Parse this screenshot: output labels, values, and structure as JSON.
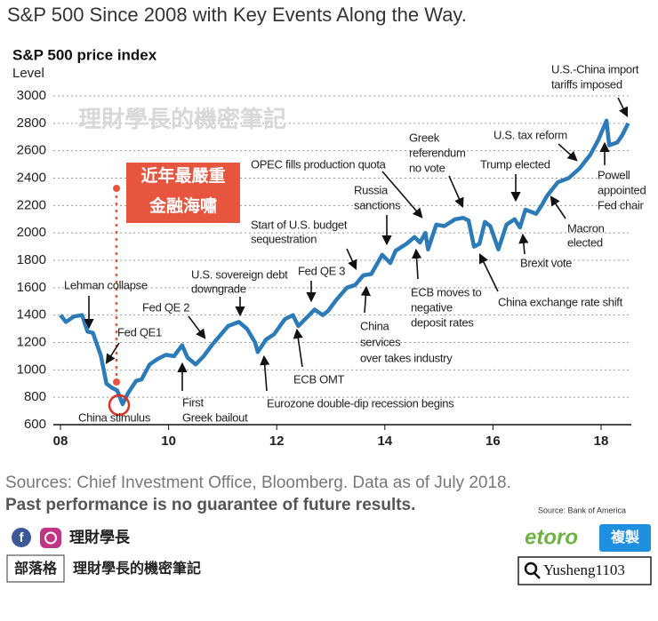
{
  "chart_data": {
    "type": "line",
    "title": "S&P 500 Since 2008 with Key Events Along the Way.",
    "subtitle": "S&P 500 price index",
    "y_axis_label": "Level",
    "watermark": "理財學長的機密筆記",
    "color": "#2b7bb9",
    "ylim": [
      600,
      3000
    ],
    "yticks": [
      600,
      800,
      1000,
      1200,
      1400,
      1600,
      1800,
      2000,
      2200,
      2400,
      2600,
      2800,
      3000
    ],
    "xlim": [
      2008,
      2018.55
    ],
    "xticks": [
      {
        "value": 2008,
        "label": "08"
      },
      {
        "value": 2010,
        "label": "10"
      },
      {
        "value": 2012,
        "label": "12"
      },
      {
        "value": 2014,
        "label": "14"
      },
      {
        "value": 2016,
        "label": "16"
      },
      {
        "value": 2018,
        "label": "18"
      }
    ],
    "grid": true,
    "x": [
      2008.0,
      2008.1,
      2008.25,
      2008.4,
      2008.5,
      2008.6,
      2008.75,
      2008.85,
      2008.95,
      2009.05,
      2009.15,
      2009.25,
      2009.4,
      2009.5,
      2009.65,
      2009.8,
      2009.95,
      2010.1,
      2010.25,
      2010.35,
      2010.5,
      2010.65,
      2010.8,
      2010.95,
      2011.1,
      2011.3,
      2011.45,
      2011.6,
      2011.65,
      2011.8,
      2011.95,
      2012.15,
      2012.3,
      2012.4,
      2012.55,
      2012.7,
      2012.85,
      2012.95,
      2013.1,
      2013.3,
      2013.45,
      2013.6,
      2013.75,
      2013.95,
      2014.1,
      2014.2,
      2014.4,
      2014.55,
      2014.65,
      2014.75,
      2014.8,
      2014.95,
      2015.1,
      2015.3,
      2015.45,
      2015.55,
      2015.65,
      2015.75,
      2015.85,
      2015.95,
      2016.1,
      2016.25,
      2016.4,
      2016.5,
      2016.6,
      2016.8,
      2016.9,
      2017.0,
      2017.2,
      2017.4,
      2017.6,
      2017.8,
      2017.95,
      2018.1,
      2018.15,
      2018.3,
      2018.4,
      2018.5
    ],
    "values": [
      1400,
      1350,
      1390,
      1400,
      1280,
      1270,
      1100,
      900,
      870,
      850,
      750,
      830,
      920,
      930,
      1040,
      1080,
      1110,
      1100,
      1180,
      1090,
      1040,
      1100,
      1180,
      1250,
      1320,
      1350,
      1300,
      1200,
      1130,
      1220,
      1260,
      1370,
      1400,
      1320,
      1380,
      1440,
      1400,
      1430,
      1510,
      1600,
      1620,
      1690,
      1700,
      1840,
      1780,
      1870,
      1920,
      1970,
      1930,
      2000,
      1880,
      2060,
      2050,
      2100,
      2110,
      2090,
      1900,
      1920,
      2080,
      2050,
      1880,
      2060,
      2100,
      2040,
      2170,
      2140,
      2200,
      2270,
      2370,
      2400,
      2470,
      2570,
      2680,
      2820,
      2640,
      2660,
      2720,
      2800
    ],
    "annotations": [
      {
        "lines": [
          "Lehman collapse"
        ]
      },
      {
        "lines": [
          "Fed QE1"
        ]
      },
      {
        "lines": [
          "China stimulus"
        ]
      },
      {
        "lines": [
          "Fed QE 2"
        ]
      },
      {
        "lines": [
          "First",
          "Greek bailout"
        ]
      },
      {
        "lines": [
          "U.S. sovereign debt",
          "downgrade"
        ]
      },
      {
        "lines": [
          "Eurozone double-dip recession begins"
        ]
      },
      {
        "lines": [
          "ECB OMT"
        ]
      },
      {
        "lines": [
          "Fed QE 3"
        ]
      },
      {
        "lines": [
          "Start of U.S. budget",
          "sequestration"
        ]
      },
      {
        "lines": [
          "China",
          "services",
          "over takes industry"
        ]
      },
      {
        "lines": [
          "Russia",
          "sanctions"
        ]
      },
      {
        "lines": [
          "OPEC fills production quota"
        ]
      },
      {
        "lines": [
          "ECB moves to",
          "negative",
          "deposit rates"
        ]
      },
      {
        "lines": [
          "Greek",
          "referendum",
          "no vote"
        ]
      },
      {
        "lines": [
          "China exchange rate shift"
        ]
      },
      {
        "lines": [
          "U.S. tax reform"
        ]
      },
      {
        "lines": [
          "Trump elected"
        ]
      },
      {
        "lines": [
          "Brexit vote"
        ]
      },
      {
        "lines": [
          "Macron",
          "elected"
        ]
      },
      {
        "lines": [
          "Powell",
          "appointed",
          "Fed chair"
        ]
      },
      {
        "lines": [
          "U.S.-China import",
          "tariffs imposed"
        ]
      }
    ],
    "highlight": {
      "lines": [
        "近年最嚴重",
        "金融海嘯"
      ]
    }
  },
  "footer": {
    "sources": "Sources: Chief Investment Office, Bloomberg. Data as of July 2018.",
    "disclaimer": "Past performance is no guarantee of future results.",
    "source_note": "Source: Bank of America"
  },
  "branding": {
    "name": "理財學長",
    "blog_tag": "部落格",
    "blog_name": "理財學長的機密筆記",
    "etoro": "etoro",
    "copy_button": "複製",
    "user_id": "Yusheng1103"
  }
}
